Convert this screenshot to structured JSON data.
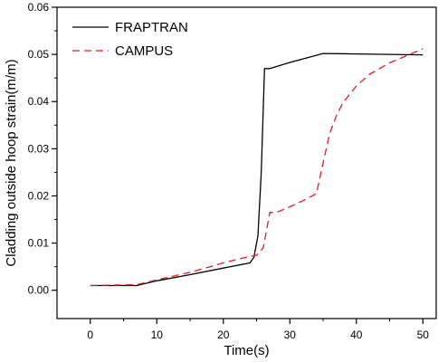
{
  "chart_data": {
    "type": "line",
    "title": "",
    "xlabel": "Time(s)",
    "ylabel": "Cladding outside hoop strain(m/m)",
    "xlim": [
      -5,
      52
    ],
    "ylim": [
      -0.006,
      0.06
    ],
    "xticks": [
      0,
      10,
      20,
      30,
      40,
      50
    ],
    "yticks": [
      0.0,
      0.01,
      0.02,
      0.03,
      0.04,
      0.05,
      0.06
    ],
    "xtick_labels": [
      "0",
      "10",
      "20",
      "30",
      "40",
      "50"
    ],
    "ytick_labels": [
      "0.00",
      "0.01",
      "0.02",
      "0.03",
      "0.04",
      "0.05",
      "0.06"
    ],
    "grid": false,
    "legend_position": "top-left",
    "series": [
      {
        "name": "FRAPTRAN",
        "color": "#000000",
        "style": "solid",
        "x": [
          0,
          7,
          10,
          15,
          20,
          24,
          24.6,
          25.2,
          25.7,
          26.2,
          26.5,
          27,
          30,
          35,
          40,
          45,
          50
        ],
        "y": [
          0.001,
          0.001,
          0.002,
          0.0033,
          0.0047,
          0.0058,
          0.007,
          0.0115,
          0.025,
          0.047,
          0.047,
          0.047,
          0.0483,
          0.0502,
          0.0501,
          0.05,
          0.0499
        ]
      },
      {
        "name": "CAMPUS",
        "color": "#e8191f",
        "style": "dashed",
        "x": [
          0,
          7,
          10,
          15,
          20,
          24,
          25,
          26,
          27,
          28,
          30,
          32,
          34,
          35,
          36,
          37,
          38,
          40,
          42,
          45,
          48,
          50
        ],
        "y": [
          0.001,
          0.0012,
          0.0022,
          0.0038,
          0.0058,
          0.0072,
          0.0074,
          0.009,
          0.0165,
          0.0165,
          0.0177,
          0.019,
          0.0205,
          0.027,
          0.0333,
          0.037,
          0.0398,
          0.0433,
          0.0458,
          0.0482,
          0.05,
          0.0512
        ]
      }
    ]
  }
}
